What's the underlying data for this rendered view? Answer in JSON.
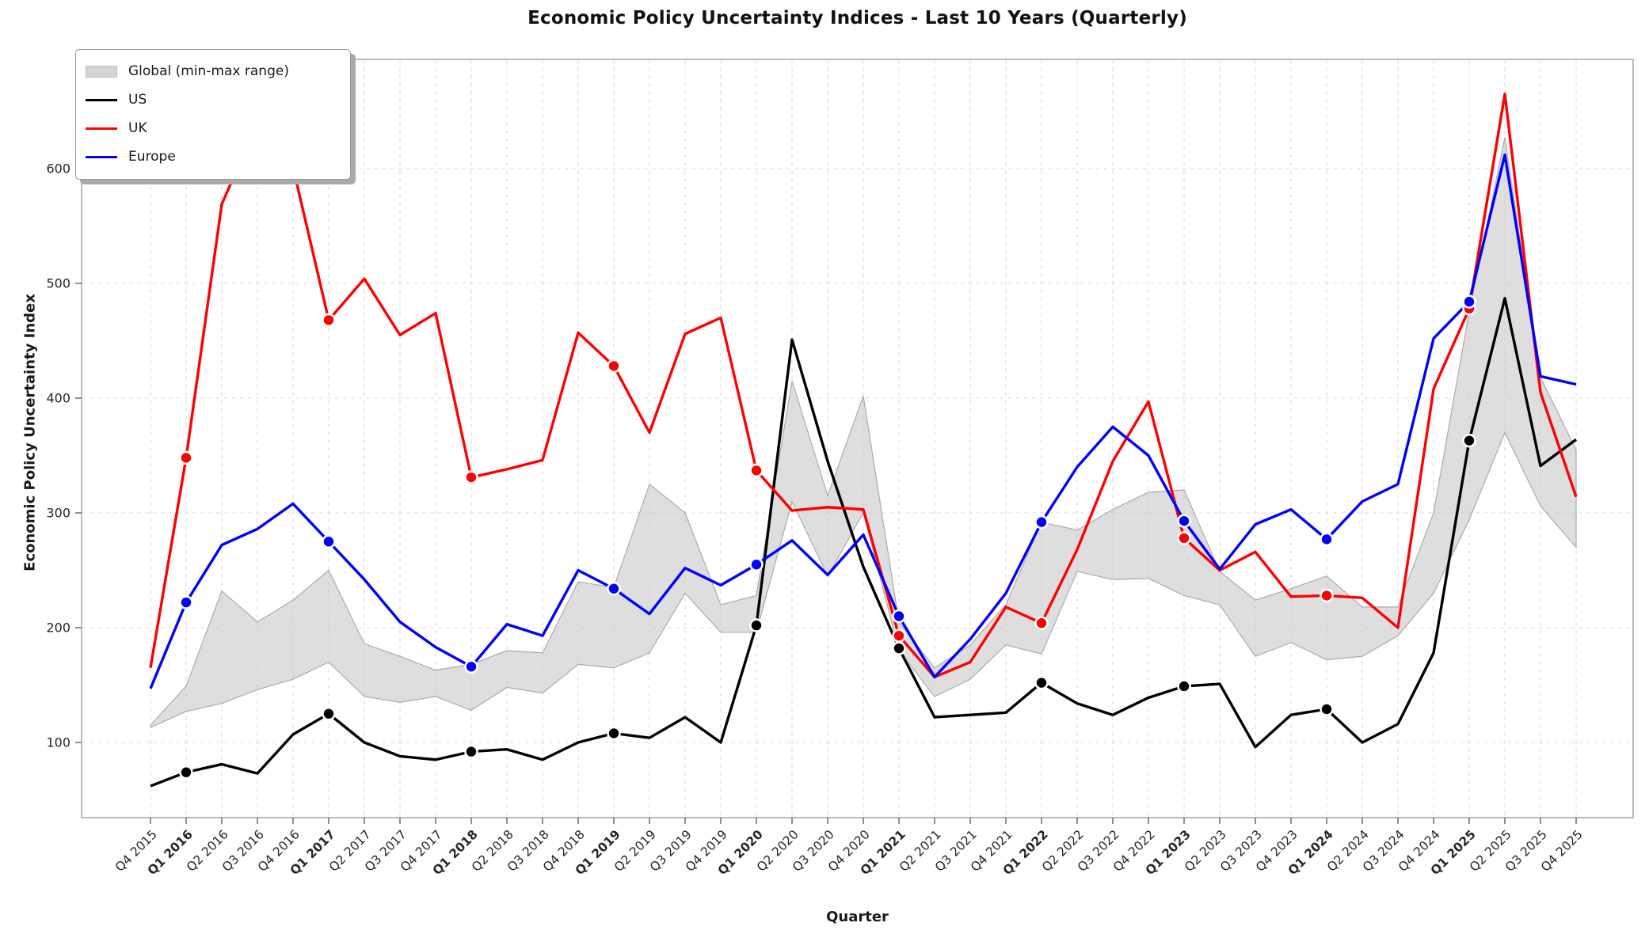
{
  "chart_data": {
    "type": "line",
    "title": "Economic Policy Uncertainty Indices - Last 10 Years (Quarterly)",
    "xlabel": "Quarter",
    "ylabel": "Economic Policy Uncertainty Index",
    "grid": true,
    "legend_position": "upper left",
    "y_ticks": [
      100,
      200,
      300,
      400,
      500,
      600
    ],
    "ylim": [
      34,
      706
    ],
    "categories": [
      "Q4 2015",
      "Q1 2016",
      "Q2 2016",
      "Q3 2016",
      "Q4 2016",
      "Q1 2017",
      "Q2 2017",
      "Q3 2017",
      "Q4 2017",
      "Q1 2018",
      "Q2 2018",
      "Q3 2018",
      "Q4 2018",
      "Q1 2019",
      "Q2 2019",
      "Q3 2019",
      "Q4 2019",
      "Q1 2020",
      "Q2 2020",
      "Q3 2020",
      "Q4 2020",
      "Q1 2021",
      "Q2 2021",
      "Q3 2021",
      "Q4 2021",
      "Q1 2022",
      "Q2 2022",
      "Q3 2022",
      "Q4 2022",
      "Q1 2023",
      "Q2 2023",
      "Q3 2023",
      "Q4 2023",
      "Q1 2024",
      "Q2 2024",
      "Q3 2024",
      "Q4 2024",
      "Q1 2025",
      "Q2 2025",
      "Q3 2025",
      "Q4 2025"
    ],
    "bold_tick_prefix": "Q1",
    "marker_on_prefix": "Q1",
    "series": [
      {
        "name": "US",
        "color": "#000000",
        "values": [
          62,
          74,
          81,
          73,
          107,
          125,
          100,
          88,
          85,
          92,
          94,
          85,
          100,
          108,
          104,
          122,
          100,
          202,
          451,
          345,
          253,
          182,
          122,
          124,
          126,
          152,
          134,
          124,
          139,
          149,
          151,
          96,
          124,
          129,
          100,
          116,
          178,
          363,
          487,
          341,
          364
        ]
      },
      {
        "name": "UK",
        "color": "#ff0000",
        "values": [
          165,
          348,
          569,
          640,
          601,
          468,
          504,
          455,
          474,
          331,
          338,
          346,
          457,
          428,
          370,
          456,
          470,
          337,
          302,
          305,
          303,
          193,
          157,
          170,
          218,
          204,
          268,
          345,
          397,
          278,
          250,
          266,
          227,
          228,
          226,
          200,
          408,
          478,
          665,
          405,
          314
        ]
      },
      {
        "name": "Europe",
        "color": "#0000ff",
        "values": [
          147,
          222,
          272,
          286,
          308,
          275,
          242,
          205,
          183,
          166,
          203,
          193,
          250,
          234,
          212,
          252,
          237,
          255,
          276,
          246,
          281,
          210,
          157,
          190,
          230,
          292,
          340,
          375,
          350,
          293,
          251,
          290,
          303,
          277,
          310,
          325,
          452,
          484,
          612,
          419,
          412
        ]
      }
    ],
    "band": {
      "name": "Global (min-max range)",
      "fill_color": "#c9c9c9",
      "edge_color": "#ababab",
      "min": [
        113,
        127,
        134,
        146,
        155,
        170,
        140,
        135,
        140,
        128,
        148,
        143,
        168,
        165,
        178,
        230,
        196,
        196,
        310,
        245,
        300,
        180,
        140,
        155,
        185,
        177,
        249,
        242,
        243,
        228,
        220,
        175,
        187,
        172,
        175,
        193,
        230,
        294,
        370,
        306,
        270
      ],
      "max": [
        115,
        149,
        232,
        205,
        224,
        250,
        186,
        175,
        163,
        168,
        180,
        178,
        240,
        235,
        325,
        300,
        220,
        228,
        415,
        315,
        402,
        205,
        165,
        185,
        220,
        292,
        285,
        303,
        318,
        320,
        249,
        224,
        234,
        245,
        218,
        218,
        300,
        475,
        627,
        418,
        355
      ]
    },
    "legend": [
      {
        "label": "Global (min-max range)",
        "type": "patch"
      },
      {
        "label": "US",
        "type": "line"
      },
      {
        "label": "UK",
        "type": "line"
      },
      {
        "label": "Europe",
        "type": "line"
      }
    ],
    "colors": {
      "grid": "#dcdcdc",
      "spine": "#ababab",
      "tick_text": "#262626"
    }
  }
}
